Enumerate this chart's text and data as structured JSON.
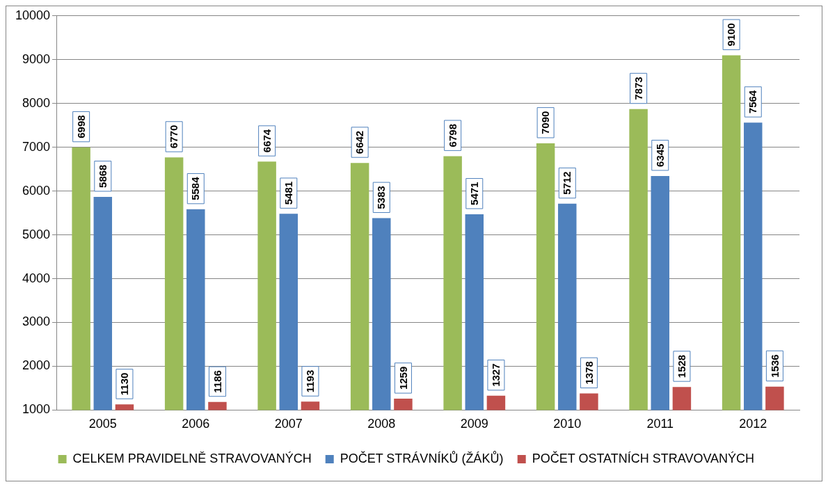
{
  "chart_data": {
    "type": "bar",
    "categories": [
      "2005",
      "2006",
      "2007",
      "2008",
      "2009",
      "2010",
      "2011",
      "2012"
    ],
    "series": [
      {
        "name": "CELKEM PRAVIDELNĚ STRAVOVANÝCH",
        "color": "#9bbb59",
        "values": [
          6998,
          6770,
          6674,
          6642,
          6798,
          7090,
          7873,
          9100
        ]
      },
      {
        "name": "POČET STRÁVNÍKŮ (ŽÁKŮ)",
        "color": "#4f81bd",
        "values": [
          5868,
          5584,
          5481,
          5383,
          5471,
          5712,
          6345,
          7564
        ]
      },
      {
        "name": "POČET OSTATNÍCH STRAVOVANÝCH",
        "color": "#c0504d",
        "values": [
          1130,
          1186,
          1193,
          1259,
          1327,
          1378,
          1528,
          1536
        ]
      }
    ],
    "ylim": [
      1000,
      10000
    ],
    "yticks": [
      1000,
      2000,
      3000,
      4000,
      5000,
      6000,
      7000,
      8000,
      9000,
      10000
    ],
    "grid": "y",
    "legend": "bottom",
    "data_labels": true
  }
}
